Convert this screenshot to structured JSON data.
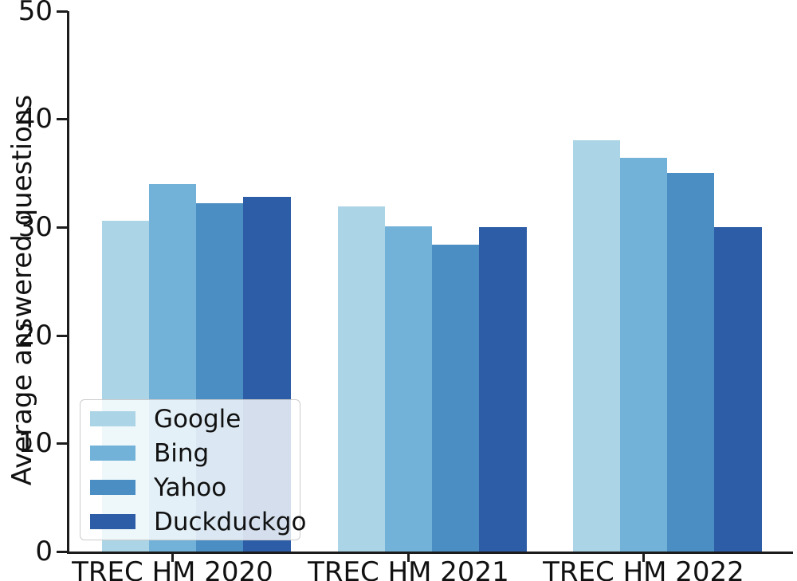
{
  "chart_data": {
    "type": "bar",
    "title": "",
    "xlabel": "",
    "ylabel": "Average answered questions",
    "categories": [
      "TREC HM 2020",
      "TREC HM 2021",
      "TREC HM 2022"
    ],
    "series": [
      {
        "name": "Google",
        "color": "#abd4e6",
        "values": [
          30.6,
          31.9,
          38.0
        ]
      },
      {
        "name": "Bing",
        "color": "#73b2d8",
        "values": [
          34.0,
          30.1,
          36.4
        ]
      },
      {
        "name": "Yahoo",
        "color": "#4a8ec3",
        "values": [
          32.2,
          28.4,
          35.0
        ]
      },
      {
        "name": "Duckduckgo",
        "color": "#2d5da6",
        "values": [
          32.8,
          30.0,
          30.0
        ]
      }
    ],
    "ylim": [
      0,
      50
    ],
    "yticks": [
      0,
      10,
      20,
      30,
      40,
      50
    ],
    "legend_position": "lower left",
    "grid": false,
    "axis_color": "#1c1c1c",
    "text_color": "#111111"
  }
}
